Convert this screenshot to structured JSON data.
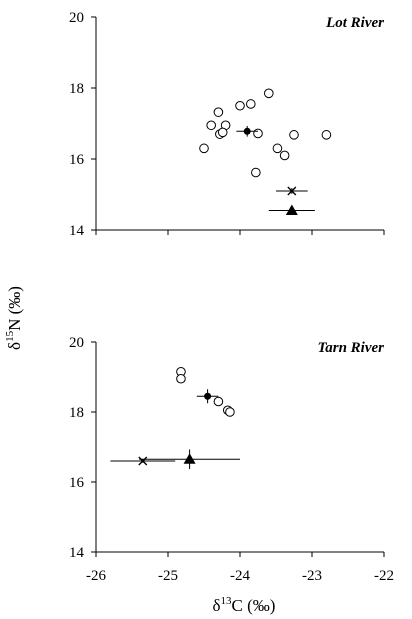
{
  "chart_data": [
    {
      "type": "scatter",
      "panel_label": "Lot River",
      "xlim": [
        -26,
        -22
      ],
      "ylim": [
        14,
        20
      ],
      "xticks": [
        "-26",
        "-25",
        "-24",
        "-23",
        "-22"
      ],
      "yticks": [
        "14",
        "16",
        "18",
        "20"
      ],
      "x_tick_labels_shown": false,
      "circles": [
        {
          "x": -24.3,
          "y": 17.32
        },
        {
          "x": -24.0,
          "y": 17.5
        },
        {
          "x": -23.85,
          "y": 17.55
        },
        {
          "x": -23.6,
          "y": 17.85
        },
        {
          "x": -24.4,
          "y": 16.95
        },
        {
          "x": -24.2,
          "y": 16.95
        },
        {
          "x": -24.28,
          "y": 16.7
        },
        {
          "x": -24.24,
          "y": 16.75
        },
        {
          "x": -23.75,
          "y": 16.72
        },
        {
          "x": -23.25,
          "y": 16.68
        },
        {
          "x": -22.8,
          "y": 16.68
        },
        {
          "x": -24.5,
          "y": 16.3
        },
        {
          "x": -23.48,
          "y": 16.3
        },
        {
          "x": -23.38,
          "y": 16.1
        },
        {
          "x": -23.78,
          "y": 15.62
        }
      ],
      "dot": {
        "x": -23.9,
        "y": 16.78,
        "xerr": 0.15,
        "yerr": 0.15
      },
      "cross": {
        "x": -23.28,
        "y": 15.1,
        "xerr": 0.22,
        "yerr": 0.08
      },
      "triangle": {
        "x": -23.28,
        "y": 14.55,
        "xerr": 0.32,
        "yerr": 0.1
      }
    },
    {
      "type": "scatter",
      "panel_label": "Tarn River",
      "xlim": [
        -26,
        -22
      ],
      "ylim": [
        14,
        20
      ],
      "xticks": [
        "-26",
        "-25",
        "-24",
        "-23",
        "-22"
      ],
      "yticks": [
        "14",
        "16",
        "18",
        "20"
      ],
      "x_tick_labels_shown": true,
      "circles": [
        {
          "x": -24.82,
          "y": 19.15
        },
        {
          "x": -24.82,
          "y": 18.95
        },
        {
          "x": -24.3,
          "y": 18.3
        },
        {
          "x": -24.17,
          "y": 18.05
        },
        {
          "x": -24.14,
          "y": 18.0
        }
      ],
      "dot": {
        "x": -24.45,
        "y": 18.45,
        "xerr": 0.15,
        "yerr": 0.2
      },
      "cross": {
        "x": -25.35,
        "y": 16.6,
        "xerr": 0.45,
        "yerr": 0.05
      },
      "triangle": {
        "x": -24.7,
        "y": 16.65,
        "xerr": 0.7,
        "yerr": 0.28
      }
    }
  ],
  "axes": {
    "ylabel_base": "δ",
    "ylabel_sup": "15",
    "ylabel_rest": "N (‰)",
    "xlabel_base": "δ",
    "xlabel_sup": "13",
    "xlabel_rest": "C (‰)"
  }
}
